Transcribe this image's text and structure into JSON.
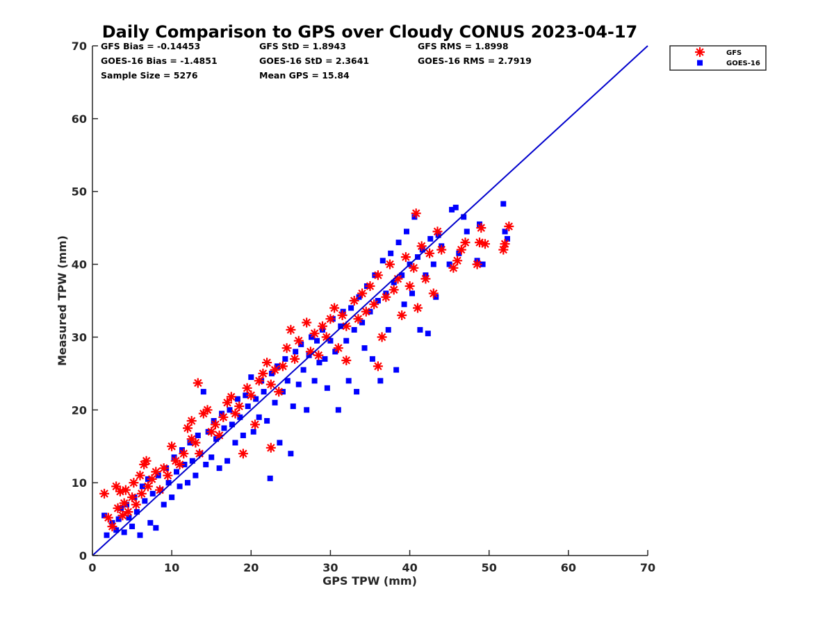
{
  "colors": {
    "gfs": "#ff0000",
    "goes16": "#0000ff",
    "one_to_one_line": "#0000cc",
    "axis": "#262626",
    "background": "#ffffff"
  },
  "stats": {
    "row1": [
      "GFS Bias = -0.14453",
      "GFS StD = 1.8943",
      "GFS RMS = 1.8998"
    ],
    "row2": [
      "GOES-16 Bias = -1.4851",
      "GOES-16 StD = 2.3641",
      "GOES-16 RMS = 2.7919"
    ],
    "row3": [
      "Sample Size = 5276",
      "Mean GPS = 15.84"
    ]
  },
  "chart_data": {
    "type": "scatter",
    "title": "Daily Comparison to GPS over Cloudy CONUS 2023-04-17",
    "xlabel": "GPS TPW (mm)",
    "ylabel": "Measured TPW (mm)",
    "xlim": [
      0,
      70
    ],
    "ylim": [
      0,
      70
    ],
    "xticks": [
      0,
      10,
      20,
      30,
      40,
      50,
      60,
      70
    ],
    "yticks": [
      0,
      10,
      20,
      30,
      40,
      50,
      60,
      70
    ],
    "grid": false,
    "legend_position": "outside top-right",
    "reference_line": {
      "label": "",
      "x": [
        0,
        70
      ],
      "y": [
        0,
        70
      ]
    },
    "series": [
      {
        "name": "GFS",
        "marker": "asterisk",
        "points": [
          [
            1.5,
            8.5
          ],
          [
            2.0,
            5.2
          ],
          [
            2.5,
            4.0
          ],
          [
            3.0,
            9.5
          ],
          [
            3.2,
            6.5
          ],
          [
            3.5,
            8.8
          ],
          [
            3.8,
            5.5
          ],
          [
            4.0,
            7.2
          ],
          [
            4.2,
            9.0
          ],
          [
            4.5,
            6.0
          ],
          [
            5.0,
            8.0
          ],
          [
            5.2,
            10.0
          ],
          [
            5.5,
            7.0
          ],
          [
            6.0,
            11.0
          ],
          [
            6.2,
            8.5
          ],
          [
            6.5,
            12.5
          ],
          [
            6.8,
            13.0
          ],
          [
            7.0,
            9.5
          ],
          [
            7.5,
            10.5
          ],
          [
            8.0,
            11.5
          ],
          [
            8.5,
            9.0
          ],
          [
            9.0,
            12.0
          ],
          [
            9.5,
            11.0
          ],
          [
            10.0,
            15.0
          ],
          [
            10.5,
            13.0
          ],
          [
            11.0,
            12.5
          ],
          [
            11.5,
            14.0
          ],
          [
            12.0,
            17.5
          ],
          [
            12.5,
            16.0
          ],
          [
            12.5,
            18.5
          ],
          [
            13.0,
            15.5
          ],
          [
            13.3,
            23.7
          ],
          [
            13.5,
            14.0
          ],
          [
            14.0,
            19.5
          ],
          [
            14.5,
            20.0
          ],
          [
            15.0,
            17.0
          ],
          [
            15.5,
            18.0
          ],
          [
            16.0,
            16.5
          ],
          [
            16.5,
            19.0
          ],
          [
            17.0,
            21.0
          ],
          [
            17.5,
            21.8
          ],
          [
            18.0,
            19.5
          ],
          [
            18.5,
            20.5
          ],
          [
            19.0,
            14.0
          ],
          [
            19.5,
            23.0
          ],
          [
            20.0,
            22.0
          ],
          [
            20.5,
            18.0
          ],
          [
            21.0,
            24.0
          ],
          [
            21.5,
            25.0
          ],
          [
            22.0,
            26.5
          ],
          [
            22.5,
            14.8
          ],
          [
            22.5,
            23.5
          ],
          [
            23.0,
            25.5
          ],
          [
            23.5,
            22.5
          ],
          [
            24.0,
            26.0
          ],
          [
            24.5,
            28.5
          ],
          [
            25.0,
            31.0
          ],
          [
            25.5,
            27.0
          ],
          [
            26.0,
            29.5
          ],
          [
            27.0,
            32.0
          ],
          [
            27.5,
            28.0
          ],
          [
            28.0,
            30.5
          ],
          [
            28.5,
            27.5
          ],
          [
            29.0,
            31.5
          ],
          [
            29.5,
            30.0
          ],
          [
            30.0,
            32.5
          ],
          [
            30.5,
            34.0
          ],
          [
            31.0,
            28.5
          ],
          [
            31.5,
            33.0
          ],
          [
            32.0,
            26.8
          ],
          [
            32.0,
            31.5
          ],
          [
            33.0,
            35.0
          ],
          [
            33.5,
            32.5
          ],
          [
            34.0,
            36.0
          ],
          [
            34.5,
            33.5
          ],
          [
            35.0,
            37.0
          ],
          [
            35.5,
            34.5
          ],
          [
            36.0,
            26.0
          ],
          [
            36.5,
            30.0
          ],
          [
            36.0,
            38.5
          ],
          [
            37.0,
            35.5
          ],
          [
            37.5,
            40.0
          ],
          [
            38.0,
            36.5
          ],
          [
            38.5,
            38.0
          ],
          [
            39.0,
            33.0
          ],
          [
            39.5,
            41.0
          ],
          [
            40.0,
            37.0
          ],
          [
            40.5,
            39.5
          ],
          [
            40.8,
            47.0
          ],
          [
            41.0,
            34.0
          ],
          [
            41.5,
            42.5
          ],
          [
            42.0,
            38.0
          ],
          [
            42.5,
            41.5
          ],
          [
            43.0,
            36.0
          ],
          [
            43.5,
            44.5
          ],
          [
            44.0,
            42.0
          ],
          [
            45.5,
            39.5
          ],
          [
            46.0,
            40.5
          ],
          [
            46.5,
            42.0
          ],
          [
            47.0,
            43.0
          ],
          [
            48.5,
            40.0
          ],
          [
            48.8,
            43.0
          ],
          [
            49.0,
            45.0
          ],
          [
            49.5,
            42.8
          ],
          [
            51.8,
            42.0
          ],
          [
            52.0,
            42.8
          ],
          [
            52.5,
            45.2
          ]
        ]
      },
      {
        "name": "GOES-16",
        "marker": "square",
        "points": [
          [
            1.5,
            5.5
          ],
          [
            1.8,
            2.8
          ],
          [
            2.5,
            4.5
          ],
          [
            3.0,
            3.5
          ],
          [
            3.3,
            5.0
          ],
          [
            3.6,
            6.5
          ],
          [
            4.0,
            3.2
          ],
          [
            4.3,
            7.0
          ],
          [
            4.6,
            5.2
          ],
          [
            5.0,
            4.0
          ],
          [
            5.3,
            8.0
          ],
          [
            5.6,
            6.0
          ],
          [
            6.0,
            2.8
          ],
          [
            6.3,
            9.5
          ],
          [
            6.6,
            7.5
          ],
          [
            7.0,
            10.5
          ],
          [
            7.3,
            4.5
          ],
          [
            7.6,
            8.5
          ],
          [
            8.0,
            3.8
          ],
          [
            8.3,
            11.0
          ],
          [
            8.6,
            9.0
          ],
          [
            9.0,
            7.0
          ],
          [
            9.3,
            12.0
          ],
          [
            9.6,
            10.0
          ],
          [
            10.0,
            8.0
          ],
          [
            10.3,
            13.5
          ],
          [
            10.6,
            11.5
          ],
          [
            11.0,
            9.5
          ],
          [
            11.3,
            14.5
          ],
          [
            11.6,
            12.5
          ],
          [
            12.0,
            10.0
          ],
          [
            12.3,
            15.5
          ],
          [
            12.6,
            13.0
          ],
          [
            13.0,
            11.0
          ],
          [
            13.3,
            16.5
          ],
          [
            13.6,
            14.0
          ],
          [
            14.0,
            22.5
          ],
          [
            14.3,
            12.5
          ],
          [
            14.6,
            17.0
          ],
          [
            15.0,
            13.5
          ],
          [
            15.3,
            18.5
          ],
          [
            15.6,
            16.0
          ],
          [
            16.0,
            12.0
          ],
          [
            16.3,
            19.5
          ],
          [
            16.6,
            17.5
          ],
          [
            17.0,
            13.0
          ],
          [
            17.3,
            20.0
          ],
          [
            17.6,
            18.0
          ],
          [
            18.0,
            15.5
          ],
          [
            18.3,
            21.5
          ],
          [
            18.6,
            19.0
          ],
          [
            19.0,
            16.5
          ],
          [
            19.3,
            22.0
          ],
          [
            19.6,
            20.5
          ],
          [
            20.0,
            24.5
          ],
          [
            20.3,
            17.0
          ],
          [
            20.6,
            21.5
          ],
          [
            21.0,
            19.0
          ],
          [
            21.3,
            24.0
          ],
          [
            21.6,
            22.5
          ],
          [
            22.0,
            18.5
          ],
          [
            22.4,
            10.6
          ],
          [
            22.6,
            25.0
          ],
          [
            23.0,
            21.0
          ],
          [
            23.3,
            26.0
          ],
          [
            23.6,
            15.5
          ],
          [
            24.0,
            22.5
          ],
          [
            24.3,
            27.0
          ],
          [
            24.6,
            24.0
          ],
          [
            25.0,
            14.0
          ],
          [
            25.3,
            20.5
          ],
          [
            25.6,
            28.0
          ],
          [
            26.0,
            23.5
          ],
          [
            26.3,
            29.0
          ],
          [
            26.6,
            25.5
          ],
          [
            27.0,
            20.0
          ],
          [
            27.3,
            27.5
          ],
          [
            27.6,
            30.0
          ],
          [
            28.0,
            24.0
          ],
          [
            28.3,
            29.5
          ],
          [
            28.6,
            26.5
          ],
          [
            29.0,
            31.0
          ],
          [
            29.3,
            27.0
          ],
          [
            29.6,
            23.0
          ],
          [
            30.0,
            29.5
          ],
          [
            30.3,
            32.5
          ],
          [
            30.6,
            28.0
          ],
          [
            31.0,
            20.0
          ],
          [
            31.3,
            31.5
          ],
          [
            31.6,
            33.5
          ],
          [
            32.0,
            29.5
          ],
          [
            32.3,
            24.0
          ],
          [
            32.6,
            34.0
          ],
          [
            33.0,
            31.0
          ],
          [
            33.3,
            22.5
          ],
          [
            33.6,
            35.5
          ],
          [
            34.0,
            32.0
          ],
          [
            34.3,
            28.5
          ],
          [
            34.6,
            37.0
          ],
          [
            35.0,
            33.5
          ],
          [
            35.3,
            27.0
          ],
          [
            35.6,
            38.5
          ],
          [
            36.0,
            35.0
          ],
          [
            36.3,
            24.0
          ],
          [
            36.6,
            40.5
          ],
          [
            37.0,
            36.0
          ],
          [
            37.3,
            31.0
          ],
          [
            37.6,
            41.5
          ],
          [
            38.0,
            37.5
          ],
          [
            38.3,
            25.5
          ],
          [
            38.6,
            43.0
          ],
          [
            39.0,
            38.5
          ],
          [
            39.3,
            34.5
          ],
          [
            39.6,
            44.5
          ],
          [
            40.0,
            40.0
          ],
          [
            40.3,
            36.0
          ],
          [
            40.6,
            46.5
          ],
          [
            41.0,
            41.0
          ],
          [
            41.3,
            31.0
          ],
          [
            41.6,
            42.0
          ],
          [
            42.0,
            38.5
          ],
          [
            42.3,
            30.5
          ],
          [
            42.6,
            43.5
          ],
          [
            43.0,
            40.0
          ],
          [
            43.3,
            35.5
          ],
          [
            43.6,
            44.0
          ],
          [
            44.0,
            42.5
          ],
          [
            45.0,
            40.0
          ],
          [
            45.3,
            47.5
          ],
          [
            45.8,
            47.8
          ],
          [
            46.2,
            41.5
          ],
          [
            46.8,
            46.5
          ],
          [
            47.2,
            44.5
          ],
          [
            48.5,
            40.5
          ],
          [
            48.8,
            45.5
          ],
          [
            49.2,
            40.0
          ],
          [
            51.8,
            48.3
          ],
          [
            52.0,
            44.5
          ],
          [
            52.3,
            43.5
          ]
        ]
      }
    ]
  }
}
